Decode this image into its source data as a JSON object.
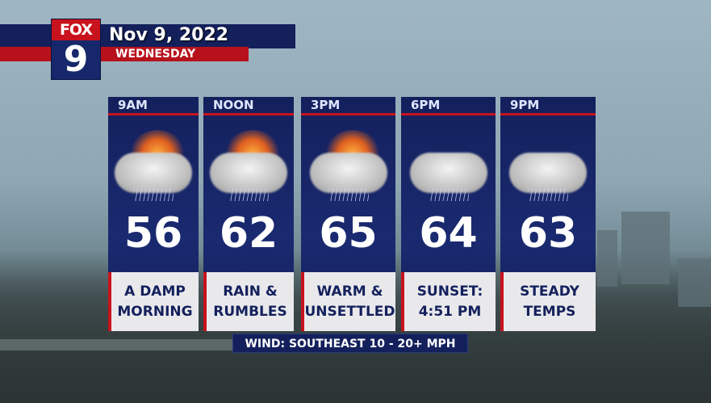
{
  "logo": {
    "network": "FOX",
    "channel": "9"
  },
  "header": {
    "date": "Nov 9, 2022",
    "weekday": "WEDNESDAY"
  },
  "periods": [
    {
      "time": "9AM",
      "temp": "56",
      "line1": "A DAMP",
      "line2": "MORNING",
      "icon": "partly-sunny-rain-icon"
    },
    {
      "time": "NOON",
      "temp": "62",
      "line1": "RAIN &",
      "line2": "RUMBLES",
      "icon": "partly-sunny-rain-icon"
    },
    {
      "time": "3PM",
      "temp": "65",
      "line1": "WARM &",
      "line2": "UNSETTLED",
      "icon": "partly-sunny-rain-icon"
    },
    {
      "time": "6PM",
      "temp": "64",
      "line1": "SUNSET:",
      "line2": "4:51 PM",
      "icon": "night-cloud-rain-icon"
    },
    {
      "time": "9PM",
      "temp": "63",
      "line1": "STEADY",
      "line2": "TEMPS",
      "icon": "night-cloud-rain-icon"
    }
  ],
  "wind": "WIND: SOUTHEAST 10 - 20+ MPH",
  "colors": {
    "navy": "#14205c",
    "red": "#c8121d",
    "panel": "#e9e9ec"
  }
}
